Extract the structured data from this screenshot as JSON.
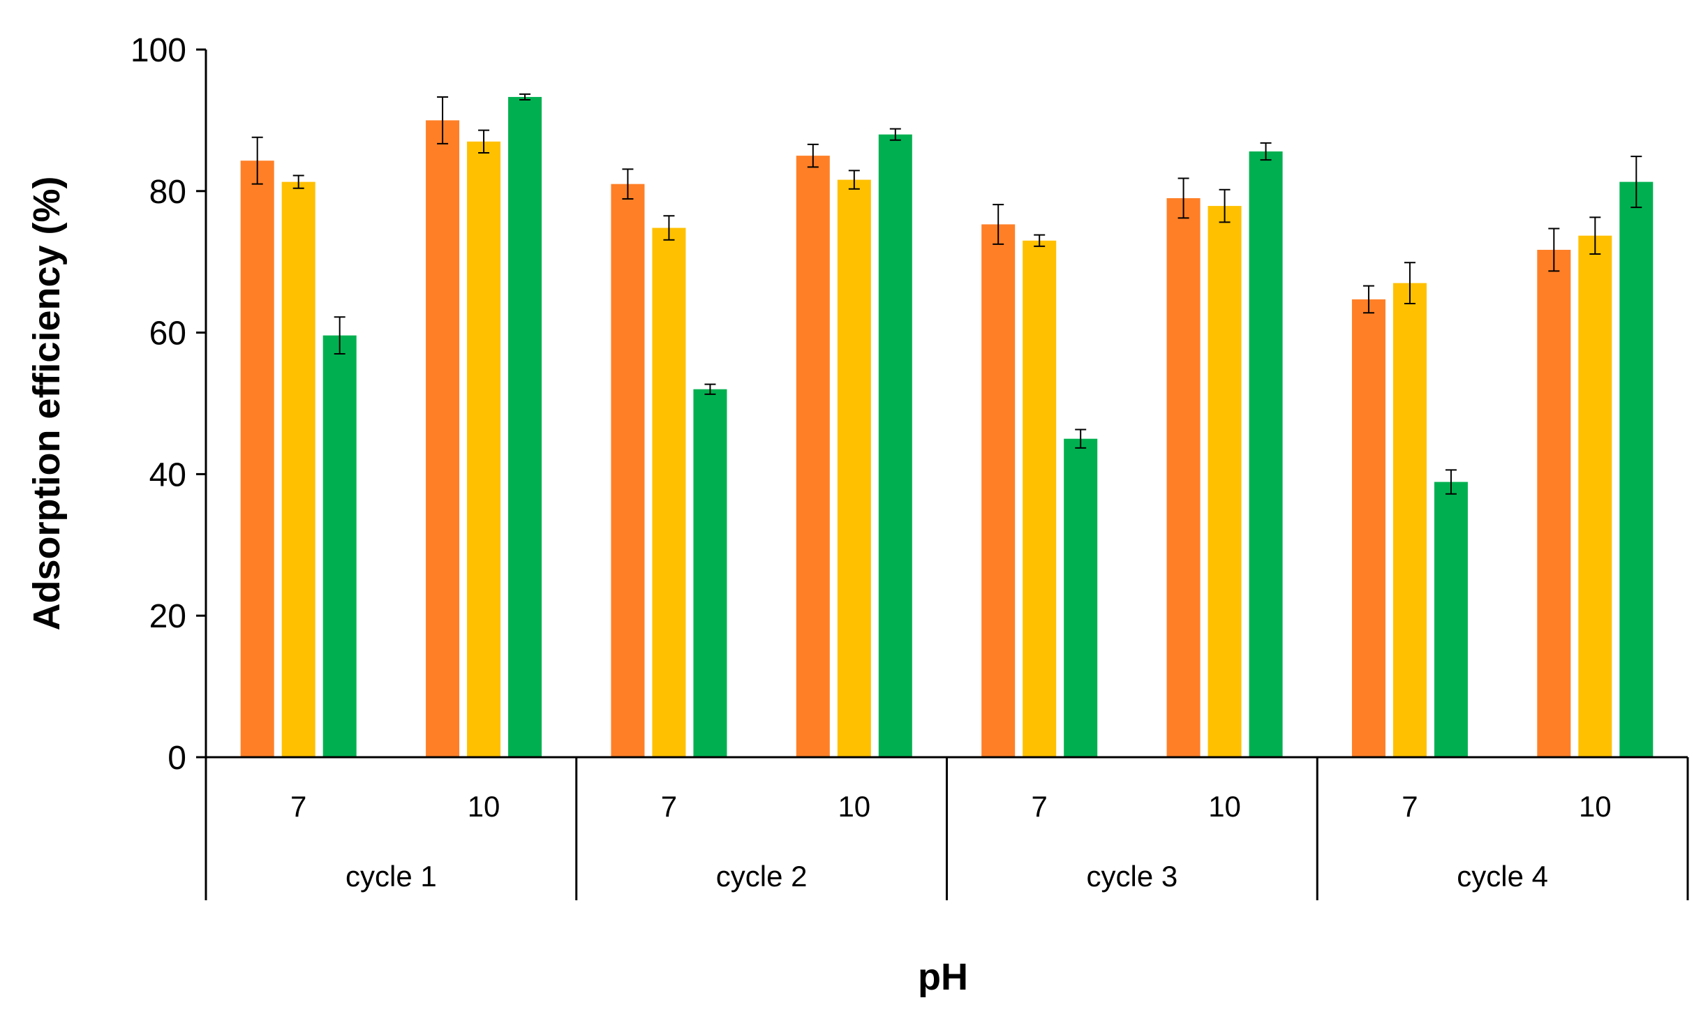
{
  "chart_data": {
    "type": "bar",
    "title": "",
    "xlabel": "pH",
    "ylabel": "Adsorption efficiency (%)",
    "ylim": [
      0,
      100
    ],
    "yticks": [
      0,
      20,
      40,
      60,
      80,
      100
    ],
    "grid": false,
    "legend": "none",
    "groups": [
      {
        "label": "cycle 1",
        "categories": [
          "7",
          "10"
        ]
      },
      {
        "label": "cycle 2",
        "categories": [
          "7",
          "10"
        ]
      },
      {
        "label": "cycle 3",
        "categories": [
          "7",
          "10"
        ]
      },
      {
        "label": "cycle 4",
        "categories": [
          "7",
          "10"
        ]
      }
    ],
    "categories": [
      "7",
      "10",
      "7",
      "10",
      "7",
      "10",
      "7",
      "10"
    ],
    "series": [
      {
        "name": "series-orange",
        "color": "#FF7F27",
        "values": [
          84.3,
          90.0,
          81.0,
          85.0,
          75.3,
          79.0,
          64.7,
          71.7
        ],
        "errors": [
          3.3,
          3.3,
          2.1,
          1.6,
          2.8,
          2.8,
          1.9,
          3.0
        ]
      },
      {
        "name": "series-yellow",
        "color": "#FFC000",
        "values": [
          81.3,
          87.0,
          74.8,
          81.6,
          73.0,
          77.9,
          67.0,
          73.7
        ],
        "errors": [
          0.9,
          1.6,
          1.7,
          1.3,
          0.8,
          2.3,
          2.9,
          2.6
        ]
      },
      {
        "name": "series-green",
        "color": "#00B050",
        "values": [
          59.6,
          93.3,
          52.0,
          88.0,
          45.0,
          85.6,
          38.9,
          81.3
        ],
        "errors": [
          2.6,
          0.4,
          0.7,
          0.8,
          1.3,
          1.2,
          1.7,
          3.6
        ]
      }
    ]
  }
}
